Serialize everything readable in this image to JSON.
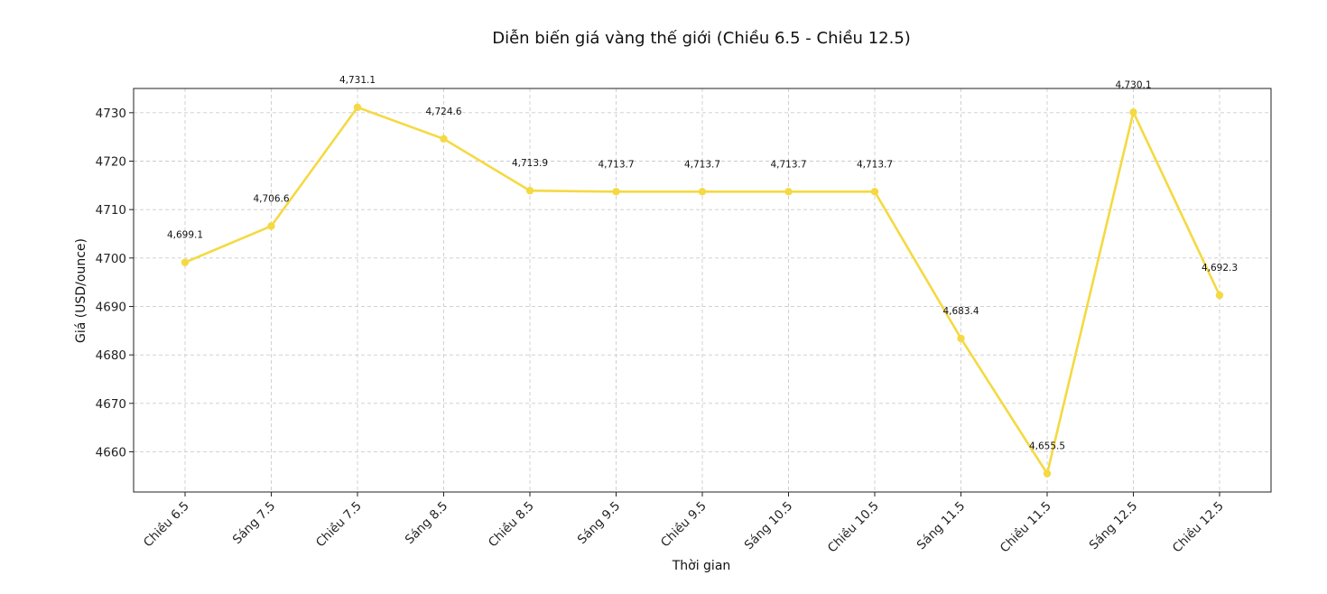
{
  "chart_data": {
    "type": "line",
    "title": "Diễn biến giá vàng thế giới (Chiều 6.5 - Chiều 12.5)",
    "xlabel": "Thời gian",
    "ylabel": "Giá (USD/ounce)",
    "categories": [
      "Chiều 6.5",
      "Sáng 7.5",
      "Chiều 7.5",
      "Sáng 8.5",
      "Chiều 8.5",
      "Sáng 9.5",
      "Chiều 9.5",
      "Sáng 10.5",
      "Chiều 10.5",
      "Sáng 11.5",
      "Chiều 11.5",
      "Sáng 12.5",
      "Chiều 12.5"
    ],
    "series": [
      {
        "values": [
          4699.1,
          4706.6,
          4731.1,
          4724.6,
          4713.9,
          4713.7,
          4713.7,
          4713.7,
          4713.7,
          4683.4,
          4655.5,
          4730.1,
          4692.3
        ],
        "data_labels": [
          "4,699.1",
          "4,706.6",
          "4,731.1",
          "4,724.6",
          "4,713.9",
          "4,713.7",
          "4,713.7",
          "4,713.7",
          "4,713.7",
          "4,683.4",
          "4,655.5",
          "4,730.1",
          "4,692.3"
        ],
        "color": "#f5d942"
      }
    ],
    "ylim": [
      4651.7,
      4735.0
    ],
    "yticks": [
      4660,
      4670,
      4680,
      4690,
      4700,
      4710,
      4720,
      4730
    ],
    "grid": true,
    "legend": "none"
  }
}
